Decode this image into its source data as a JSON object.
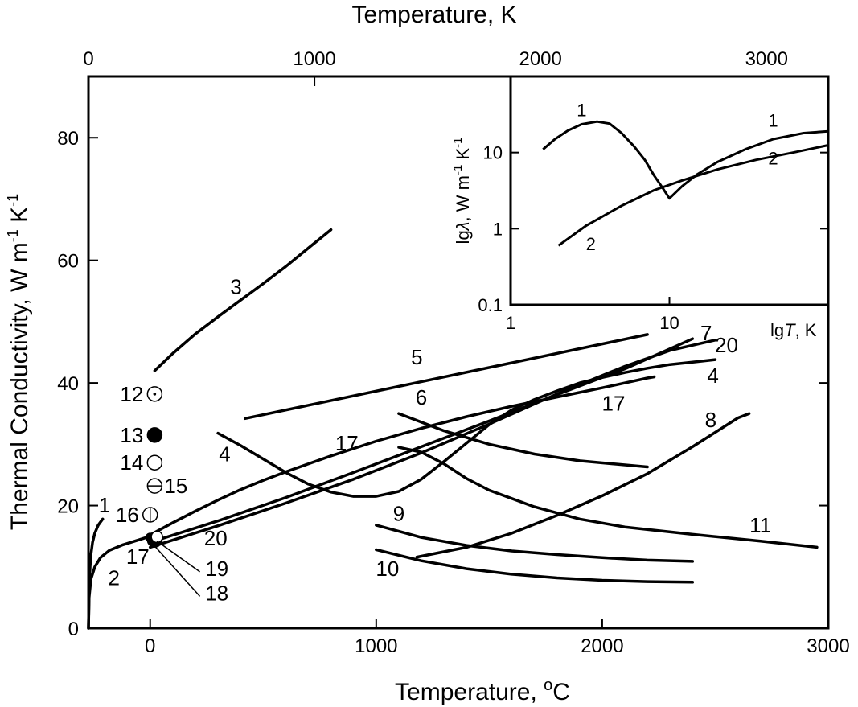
{
  "chart_data": {
    "type": "line",
    "xlabel_main": "Temperature, ",
    "xlabel_unit": "C",
    "xlabel_degree": "o",
    "x2label": "Temperature, K",
    "ylabel": "Thermal Conductivity, W m",
    "ylabel_exp1": "-1",
    "ylabel_unit_k": " K",
    "ylabel_exp2": "-1",
    "xlim": [
      -273,
      3000
    ],
    "ylim": [
      0,
      90
    ],
    "x_ticks": [
      0,
      1000,
      2000,
      3000
    ],
    "x_tick_labels": [
      "0",
      "1000",
      "2000",
      "3000"
    ],
    "y_ticks": [
      0,
      20,
      40,
      60,
      80
    ],
    "y_tick_labels": [
      "0",
      "20",
      "40",
      "60",
      "80"
    ],
    "x2_ticks_kelvin": [
      0,
      1000,
      2000,
      3000
    ],
    "x2_tick_labels": [
      "0",
      "1000",
      "2000",
      "3000"
    ],
    "series": [
      {
        "name": "1",
        "label": "1",
        "points": [
          [
            -273,
            0
          ],
          [
            -270,
            6
          ],
          [
            -266,
            10
          ],
          [
            -262,
            12
          ],
          [
            -255,
            14
          ],
          [
            -245,
            15.5
          ],
          [
            -230,
            16.8
          ],
          [
            -210,
            17.8
          ]
        ],
        "label_at": [
          -202,
          18.9
        ]
      },
      {
        "name": "2",
        "label": "2",
        "points": [
          [
            -273,
            0
          ],
          [
            -270,
            5
          ],
          [
            -262,
            8
          ],
          [
            -245,
            10
          ],
          [
            -220,
            11.5
          ],
          [
            -180,
            12.7
          ],
          [
            -120,
            13.6
          ],
          [
            -50,
            14.4
          ],
          [
            0,
            15
          ]
        ],
        "label_at": [
          -160,
          7
        ]
      },
      {
        "name": "3",
        "label": "3",
        "points": [
          [
            20,
            42
          ],
          [
            100,
            44.8
          ],
          [
            200,
            48
          ],
          [
            300,
            50.8
          ],
          [
            400,
            53.5
          ],
          [
            500,
            56.2
          ],
          [
            600,
            59
          ],
          [
            700,
            62
          ],
          [
            800,
            65
          ]
        ],
        "label_at": [
          380,
          54.5
        ]
      },
      {
        "name": "4",
        "label": "4",
        "points": [
          [
            300,
            31.8
          ],
          [
            400,
            29.8
          ],
          [
            500,
            27.6
          ],
          [
            600,
            25.4
          ],
          [
            700,
            23.5
          ],
          [
            800,
            22.2
          ],
          [
            900,
            21.5
          ],
          [
            1000,
            21.5
          ],
          [
            1100,
            22.3
          ],
          [
            1200,
            24.3
          ],
          [
            1300,
            27.2
          ],
          [
            1400,
            30.2
          ],
          [
            1500,
            33.2
          ],
          [
            1600,
            35.6
          ],
          [
            1700,
            37.3
          ],
          [
            1800,
            38.7
          ],
          [
            1900,
            40
          ],
          [
            2000,
            40.9
          ],
          [
            2100,
            41.7
          ],
          [
            2200,
            42.4
          ],
          [
            2300,
            43
          ],
          [
            2400,
            43.4
          ],
          [
            2500,
            43.8
          ]
        ],
        "label_at": [
          330,
          27.2
        ]
      },
      {
        "name": "4b",
        "label": "4",
        "points": [],
        "label_at": [
          2490,
          40
        ]
      },
      {
        "name": "5",
        "label": "5",
        "points": [
          [
            420,
            34.2
          ],
          [
            2200,
            47.9
          ]
        ],
        "label_at": [
          1180,
          43
        ]
      },
      {
        "name": "6",
        "label": "6",
        "points": [
          [
            1100,
            35
          ],
          [
            1300,
            32.2
          ],
          [
            1500,
            30
          ],
          [
            1700,
            28.4
          ],
          [
            1900,
            27.3
          ],
          [
            2200,
            26.3
          ]
        ],
        "label_at": [
          1200,
          36.5
        ]
      },
      {
        "name": "7",
        "label": "7",
        "points": [
          [
            0,
            14
          ],
          [
            300,
            17.5
          ],
          [
            600,
            21.3
          ],
          [
            900,
            25.4
          ],
          [
            1200,
            29.6
          ],
          [
            1500,
            33.8
          ],
          [
            1800,
            38.1
          ],
          [
            2100,
            42.3
          ],
          [
            2400,
            47.2
          ]
        ],
        "label_at": [
          2460,
          47
        ]
      },
      {
        "name": "8",
        "label": "8",
        "points": [
          [
            1180,
            11.6
          ],
          [
            1400,
            13.2
          ],
          [
            1600,
            15.5
          ],
          [
            1800,
            18.4
          ],
          [
            2000,
            21.6
          ],
          [
            2200,
            25.2
          ],
          [
            2400,
            29.6
          ],
          [
            2600,
            34.3
          ],
          [
            2650,
            35
          ]
        ],
        "label_at": [
          2480,
          32.8
        ]
      },
      {
        "name": "9",
        "label": "9",
        "points": [
          [
            1000,
            16.8
          ],
          [
            1200,
            14.8
          ],
          [
            1400,
            13.5
          ],
          [
            1600,
            12.6
          ],
          [
            1800,
            12
          ],
          [
            2000,
            11.5
          ],
          [
            2200,
            11.1
          ],
          [
            2400,
            10.9
          ]
        ],
        "label_at": [
          1100,
          17.5
        ]
      },
      {
        "name": "10",
        "label": "10",
        "points": [
          [
            1000,
            12.8
          ],
          [
            1200,
            11
          ],
          [
            1400,
            9.7
          ],
          [
            1600,
            8.8
          ],
          [
            1800,
            8.2
          ],
          [
            2000,
            7.8
          ],
          [
            2200,
            7.6
          ],
          [
            2400,
            7.5
          ]
        ],
        "label_at": [
          1050,
          8.5
        ]
      },
      {
        "name": "11",
        "label": "11",
        "points": [
          [
            1100,
            29.5
          ],
          [
            1200,
            28.7
          ],
          [
            1300,
            26.8
          ],
          [
            1400,
            24.4
          ],
          [
            1500,
            22.5
          ],
          [
            1700,
            19.8
          ],
          [
            1900,
            17.8
          ],
          [
            2100,
            16.5
          ],
          [
            2400,
            15.3
          ],
          [
            2700,
            14.2
          ],
          [
            2950,
            13.2
          ]
        ],
        "label_at": [
          2700,
          15.6
        ]
      },
      {
        "name": "17",
        "label": "17",
        "points": [
          [
            0,
            15.2
          ],
          [
            100,
            17.2
          ],
          [
            200,
            19.1
          ],
          [
            300,
            20.9
          ],
          [
            400,
            22.6
          ],
          [
            500,
            24.1
          ],
          [
            600,
            25.5
          ],
          [
            800,
            28.1
          ],
          [
            1000,
            30.5
          ],
          [
            1200,
            32.6
          ],
          [
            1400,
            34.5
          ],
          [
            1600,
            36.2
          ],
          [
            1800,
            37.7
          ],
          [
            2000,
            39.2
          ],
          [
            2200,
            40.8
          ],
          [
            2230,
            41
          ]
        ],
        "label_at": [
          870,
          29
        ]
      },
      {
        "name": "17b",
        "label": "17",
        "points": [],
        "label_at": [
          2050,
          35.5
        ]
      },
      {
        "name": "20",
        "label": "20",
        "points": [
          [
            0,
            13.2
          ],
          [
            300,
            16.7
          ],
          [
            600,
            20.4
          ],
          [
            900,
            24.3
          ],
          [
            1200,
            28.6
          ],
          [
            1500,
            33.3
          ],
          [
            1800,
            38.2
          ],
          [
            2100,
            42.7
          ],
          [
            2300,
            45.3
          ],
          [
            2500,
            47
          ]
        ],
        "label_at": [
          2550,
          45
        ]
      }
    ],
    "point_labels": [
      {
        "label": "12",
        "x": 20,
        "y": 38.2,
        "style": "dot-circle",
        "label_side": "left"
      },
      {
        "label": "13",
        "x": 20,
        "y": 31.5,
        "style": "filled",
        "label_side": "left"
      },
      {
        "label": "14",
        "x": 20,
        "y": 27,
        "style": "open",
        "label_side": "left"
      },
      {
        "label": "15",
        "x": 20,
        "y": 23.2,
        "style": "horizontal-bar",
        "label_side": "right"
      },
      {
        "label": "16",
        "x": 0,
        "y": 18.5,
        "style": "vertical-bar",
        "label_side": "left"
      },
      {
        "label": "17",
        "x": 0,
        "y": 14.8,
        "style": "point",
        "label_side": "none"
      },
      {
        "label": "18",
        "x": 20,
        "y": 14.4,
        "style": "half-filled",
        "label_side": "none"
      },
      {
        "label": "19",
        "x": 30,
        "y": 14.9,
        "style": "open-small",
        "label_side": "none"
      }
    ],
    "annotation_labels": [
      {
        "text": "17",
        "x": -55,
        "y": 10.5
      },
      {
        "text": "20",
        "x": 290,
        "y": 13.5
      },
      {
        "text": "19",
        "x": 295,
        "y": 8.5
      },
      {
        "text": "18",
        "x": 295,
        "y": 4.5
      }
    ],
    "inset": {
      "type": "line-loglog",
      "xlabel_prefix": "lg",
      "xlabel_var": "T",
      "xlabel_unit": ", K",
      "ylabel_prefix": "lg",
      "ylabel_var": "λ",
      "ylabel_unit": ", W m",
      "ylabel_exp1": "-1",
      "ylabel_k": " K",
      "ylabel_exp2": "-1",
      "xlim": [
        1,
        100
      ],
      "ylim": [
        0.1,
        100
      ],
      "x_ticks": [
        1,
        10
      ],
      "x_tick_labels": [
        "1",
        "10"
      ],
      "y_ticks": [
        0.1,
        1,
        10
      ],
      "y_tick_labels": [
        "0.1",
        "1",
        "10"
      ],
      "series": [
        {
          "name": "1",
          "label": "1",
          "points": [
            [
              1.6,
              11
            ],
            [
              1.9,
              15
            ],
            [
              2.3,
              19.5
            ],
            [
              2.8,
              23.5
            ],
            [
              3.5,
              25.5
            ],
            [
              4.2,
              24
            ],
            [
              5,
              18
            ],
            [
              6,
              12
            ],
            [
              7,
              8
            ],
            [
              8,
              5
            ],
            [
              9,
              3.5
            ],
            [
              10,
              2.5
            ],
            [
              12,
              3.6
            ],
            [
              15,
              5.2
            ],
            [
              20,
              7.5
            ],
            [
              30,
              11
            ],
            [
              45,
              15
            ],
            [
              70,
              18
            ],
            [
              100,
              19
            ]
          ],
          "label_at": [
            2.8,
            30
          ],
          "label2_at": [
            45,
            22
          ]
        },
        {
          "name": "2",
          "label": "2",
          "points": [
            [
              2,
              0.6
            ],
            [
              3,
              1.1
            ],
            [
              5,
              2
            ],
            [
              8,
              3.2
            ],
            [
              12,
              4.3
            ],
            [
              20,
              6
            ],
            [
              35,
              8
            ],
            [
              60,
              10
            ],
            [
              100,
              12.5
            ]
          ],
          "label_at": [
            3.2,
            0.52
          ],
          "label2_at": [
            45,
            7
          ]
        }
      ]
    }
  }
}
